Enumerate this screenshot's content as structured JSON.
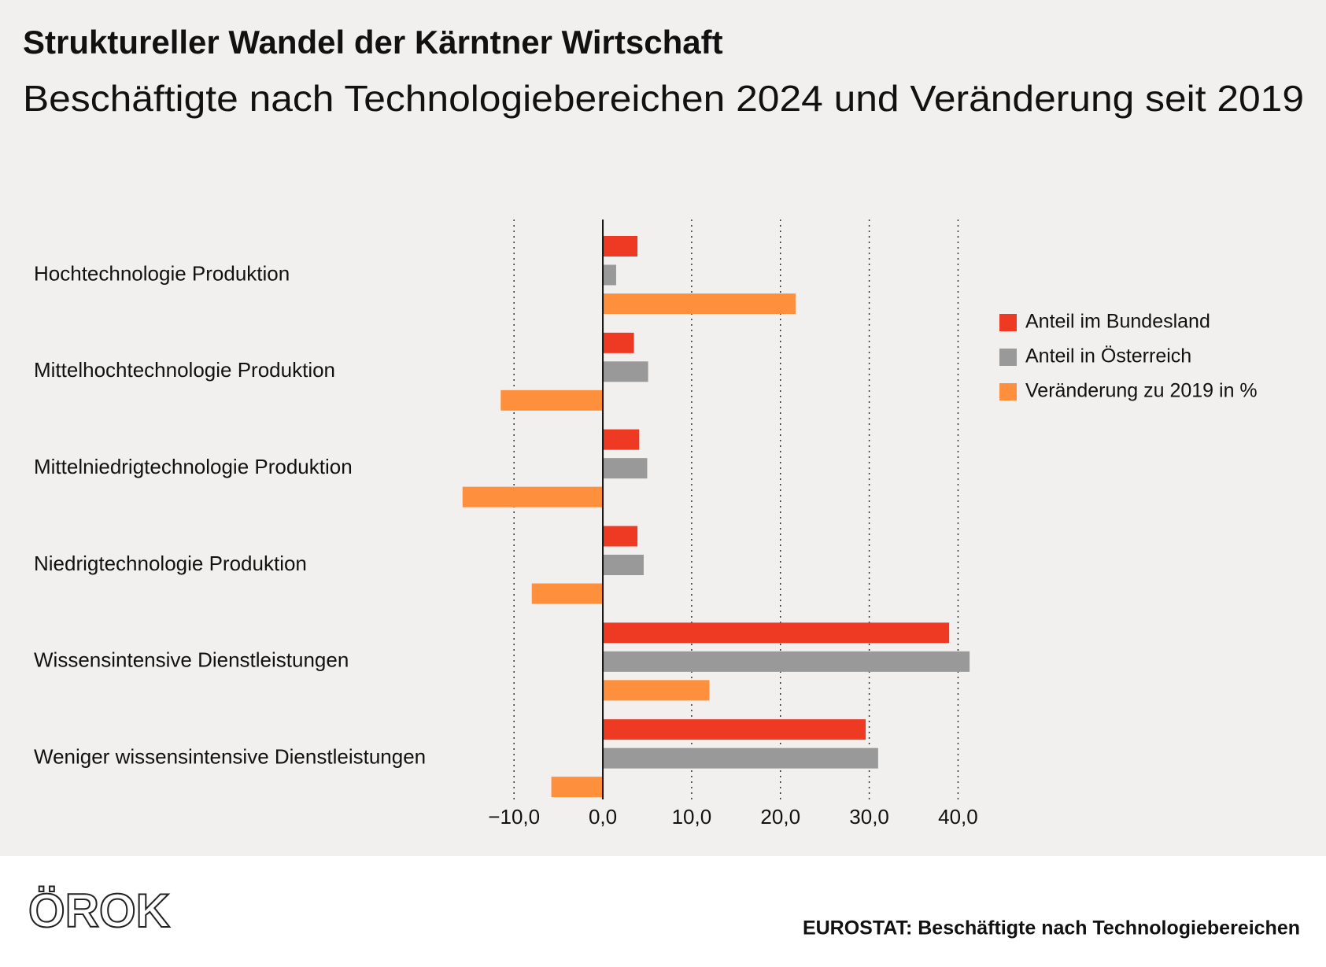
{
  "chart_data": {
    "type": "barh",
    "title": "Struktureller Wandel der Kärntner Wirtschaft",
    "subtitle": "Beschäftigte nach Technologiebereichen 2024 und Veränderung seit 2019",
    "categories": [
      "Hochtechnologie Produktion",
      "Mittelhochtechnologie Produktion",
      "Mittelniedrigtechnologie Produktion",
      "Niedrigtechnologie Produktion",
      "Wissensintensive Dienstleistungen",
      "Weniger wissensintensive Dienstleistungen"
    ],
    "series": [
      {
        "name": "Anteil im Bundesland",
        "color": "#ee3a23",
        "values": [
          3.9,
          3.5,
          4.1,
          3.9,
          39.0,
          29.6
        ]
      },
      {
        "name": "Anteil in Österreich",
        "color": "#999999",
        "values": [
          1.5,
          5.1,
          5.0,
          4.6,
          41.3,
          31.0
        ]
      },
      {
        "name": "Veränderung zu 2019 in %",
        "color": "#fd8f3d",
        "values": [
          21.7,
          -11.5,
          -15.8,
          -8.0,
          12.0,
          -5.8
        ]
      }
    ],
    "xlim": [
      -16,
      42
    ],
    "xticks": [
      {
        "value": -10,
        "label": "−10,0"
      },
      {
        "value": 0,
        "label": "0,0"
      },
      {
        "value": 10,
        "label": "10,0"
      },
      {
        "value": 20,
        "label": "20,0"
      },
      {
        "value": 30,
        "label": "30,0"
      },
      {
        "value": 40,
        "label": "40,0"
      }
    ],
    "grid": true,
    "legend": "right",
    "logo": "ÖROK",
    "source": "EUROSTAT: Beschäftigte nach Technologiebereichen"
  }
}
